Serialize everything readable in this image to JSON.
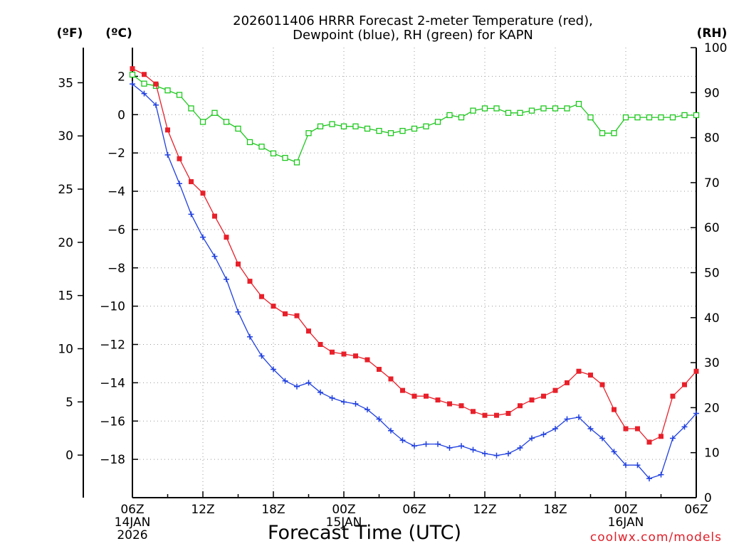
{
  "chart_data": {
    "type": "line",
    "title": [
      "2026011406 HRRR Forecast 2-meter Temperature (red),",
      "Dewpoint (blue), RH (green) for KAPN"
    ],
    "xlabel": "Forecast Time (UTC)",
    "credit": "coolwx.com/models",
    "x_hours_range": [
      0,
      48
    ],
    "x_ticks": [
      {
        "hour": 0,
        "lines": [
          "06Z",
          "14JAN",
          "2026"
        ]
      },
      {
        "hour": 6,
        "lines": [
          "12Z"
        ]
      },
      {
        "hour": 12,
        "lines": [
          "18Z"
        ]
      },
      {
        "hour": 18,
        "lines": [
          "00Z",
          "15JAN"
        ]
      },
      {
        "hour": 24,
        "lines": [
          "06Z"
        ]
      },
      {
        "hour": 30,
        "lines": [
          "12Z"
        ]
      },
      {
        "hour": 36,
        "lines": [
          "18Z"
        ]
      },
      {
        "hour": 42,
        "lines": [
          "00Z",
          "16JAN"
        ]
      },
      {
        "hour": 48,
        "lines": [
          "06Z"
        ]
      }
    ],
    "left_axis_f": {
      "unit_label": "(ºF)",
      "ticks": [
        "35",
        "30",
        "25",
        "20",
        "15",
        "10",
        "5",
        "0"
      ],
      "tick_values": [
        35,
        30,
        25,
        20,
        15,
        10,
        5,
        0
      ]
    },
    "left_axis_c": {
      "unit_label": "(ºC)",
      "ylim": [
        -20,
        3.5
      ],
      "ticks": [
        "2",
        "0",
        "−2",
        "−4",
        "−6",
        "−8",
        "−10",
        "−12",
        "−14",
        "−16",
        "−18"
      ],
      "tick_values": [
        2,
        0,
        -2,
        -4,
        -6,
        -8,
        -10,
        -12,
        -14,
        -16,
        -18
      ]
    },
    "right_axis_rh": {
      "unit_label": "(RH)",
      "ylim": [
        0,
        100
      ],
      "ticks": [
        "100",
        "90",
        "80",
        "70",
        "60",
        "50",
        "40",
        "30",
        "20",
        "10",
        "0"
      ],
      "tick_values": [
        100,
        90,
        80,
        70,
        60,
        50,
        40,
        30,
        20,
        10,
        0
      ]
    },
    "x_hours": [
      0,
      1,
      2,
      3,
      4,
      5,
      6,
      7,
      8,
      9,
      10,
      11,
      12,
      13,
      14,
      15,
      16,
      17,
      18,
      19,
      20,
      21,
      22,
      23,
      24,
      25,
      26,
      27,
      28,
      29,
      30,
      31,
      32,
      33,
      34,
      35,
      36,
      37,
      38,
      39,
      40,
      41,
      42,
      43,
      44,
      45,
      46,
      47,
      48
    ],
    "series": [
      {
        "name": "2-meter Temperature",
        "units": "C",
        "color": "#e8202a",
        "marker": "filled-square",
        "values": [
          2.4,
          2.1,
          1.6,
          -0.8,
          -2.3,
          -3.5,
          -4.1,
          -5.3,
          -6.4,
          -7.8,
          -8.7,
          -9.5,
          -10.0,
          -10.4,
          -10.5,
          -11.3,
          -12.0,
          -12.4,
          -12.5,
          -12.6,
          -12.8,
          -13.3,
          -13.8,
          -14.4,
          -14.7,
          -14.7,
          -14.9,
          -15.1,
          -15.2,
          -15.5,
          -15.7,
          -15.7,
          -15.6,
          -15.2,
          -14.9,
          -14.7,
          -14.4,
          -14.0,
          -13.4,
          -13.6,
          -14.1,
          -15.4,
          -16.4,
          -16.4,
          -17.1,
          -16.8,
          -14.7,
          -14.1,
          -13.4
        ]
      },
      {
        "name": "Dewpoint",
        "units": "C",
        "color": "#2040e0",
        "marker": "plus",
        "values": [
          1.6,
          1.1,
          0.5,
          -2.1,
          -3.6,
          -5.2,
          -6.4,
          -7.4,
          -8.6,
          -10.3,
          -11.6,
          -12.6,
          -13.3,
          -13.9,
          -14.2,
          -14.0,
          -14.5,
          -14.8,
          -15.0,
          -15.1,
          -15.4,
          -15.9,
          -16.5,
          -17.0,
          -17.3,
          -17.2,
          -17.2,
          -17.4,
          -17.3,
          -17.5,
          -17.7,
          -17.8,
          -17.7,
          -17.4,
          -16.9,
          -16.7,
          -16.4,
          -15.9,
          -15.8,
          -16.4,
          -16.9,
          -17.6,
          -18.3,
          -18.3,
          -19.0,
          -18.8,
          -16.9,
          -16.3,
          -15.6
        ]
      },
      {
        "name": "RH",
        "units": "%",
        "color": "#1ec81e",
        "marker": "open-square",
        "values": [
          94,
          92,
          91.5,
          90.5,
          89.5,
          86.5,
          83.5,
          85.5,
          83.5,
          82.0,
          79.0,
          78.0,
          76.5,
          75.5,
          74.5,
          81.0,
          82.5,
          83.0,
          82.5,
          82.5,
          82.0,
          81.5,
          81.0,
          81.5,
          82.0,
          82.5,
          83.5,
          85.0,
          84.5,
          86.0,
          86.5,
          86.5,
          85.5,
          85.5,
          86.0,
          86.5,
          86.5,
          86.5,
          87.5,
          84.5,
          81.0,
          81.0,
          84.5,
          84.5,
          84.5,
          84.5,
          84.5,
          85.0,
          85.0
        ]
      }
    ]
  }
}
